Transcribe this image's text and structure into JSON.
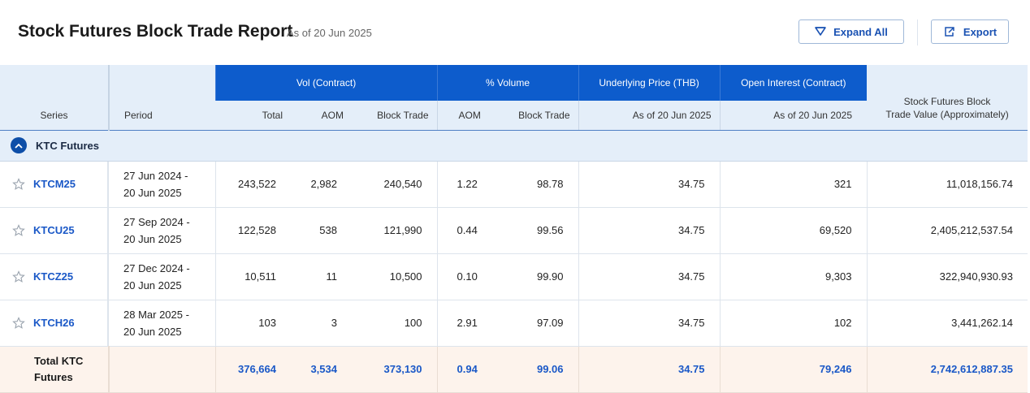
{
  "header": {
    "title": "Stock Futures Block Trade Report",
    "as_of": "As of 20 Jun 2025",
    "expand_label": "Expand All",
    "export_label": "Export"
  },
  "table": {
    "group_headers": {
      "vol": "Vol (Contract)",
      "pct": "% Volume",
      "underlying": "Underlying Price (THB)",
      "oi": "Open Interest (Contract)"
    },
    "columns": {
      "series": "Series",
      "period": "Period",
      "total": "Total",
      "aom": "AOM",
      "block": "Block Trade",
      "pct_aom": "AOM",
      "pct_block": "Block Trade",
      "underlying_asof": "As of 20 Jun 2025",
      "oi_asof": "As of 20 Jun 2025",
      "value_line1": "Stock Futures Block",
      "value_line2": "Trade Value (Approximately)"
    },
    "group": {
      "label": "KTC Futures"
    },
    "rows": [
      {
        "series": "KTCM25",
        "period_start": "27 Jun 2024 -",
        "period_end": "20 Jun 2025",
        "total": "243,522",
        "aom": "2,982",
        "block": "240,540",
        "pct_aom": "1.22",
        "pct_block": "98.78",
        "underlying": "34.75",
        "oi": "321",
        "value": "11,018,156.74"
      },
      {
        "series": "KTCU25",
        "period_start": "27 Sep 2024 -",
        "period_end": "20 Jun 2025",
        "total": "122,528",
        "aom": "538",
        "block": "121,990",
        "pct_aom": "0.44",
        "pct_block": "99.56",
        "underlying": "34.75",
        "oi": "69,520",
        "value": "2,405,212,537.54"
      },
      {
        "series": "KTCZ25",
        "period_start": "27 Dec 2024 -",
        "period_end": "20 Jun 2025",
        "total": "10,511",
        "aom": "11",
        "block": "10,500",
        "pct_aom": "0.10",
        "pct_block": "99.90",
        "underlying": "34.75",
        "oi": "9,303",
        "value": "322,940,930.93"
      },
      {
        "series": "KTCH26",
        "period_start": "28 Mar 2025 -",
        "period_end": "20 Jun 2025",
        "total": "103",
        "aom": "3",
        "block": "100",
        "pct_aom": "2.91",
        "pct_block": "97.09",
        "underlying": "34.75",
        "oi": "102",
        "value": "3,441,262.14"
      }
    ],
    "total": {
      "label_line1": "Total KTC",
      "label_line2": "Futures",
      "total": "376,664",
      "aom": "3,534",
      "block": "373,130",
      "pct_aom": "0.94",
      "pct_block": "99.06",
      "underlying": "34.75",
      "oi": "79,246",
      "value": "2,742,612,887.35"
    }
  },
  "icons": {
    "expand": "filter-funnel-icon",
    "export": "export-icon",
    "group_toggle": "chevron-up-icon",
    "favorite": "star-outline-icon"
  },
  "colors": {
    "brand_blue": "#0d5ccc",
    "header_bg": "#e4eef9",
    "link_blue": "#1a58c7",
    "total_row_bg": "#fdf3ec"
  }
}
